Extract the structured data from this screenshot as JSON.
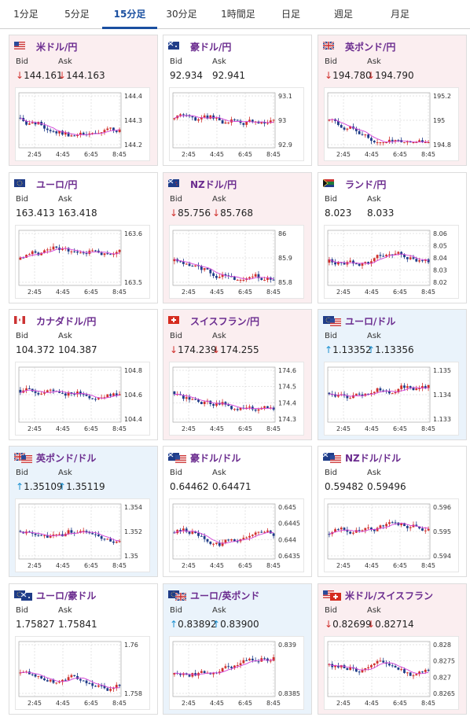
{
  "tabs": [
    {
      "label": "1分足",
      "active": false
    },
    {
      "label": "5分足",
      "active": false
    },
    {
      "label": "15分足",
      "active": true
    },
    {
      "label": "30分足",
      "active": false
    },
    {
      "label": "1時間足",
      "active": false
    },
    {
      "label": "日足",
      "active": false
    },
    {
      "label": "週足",
      "active": false
    },
    {
      "label": "月足",
      "active": false
    }
  ],
  "x_ticks": [
    "2:45",
    "4:45",
    "6:45",
    "8:45"
  ],
  "labels": {
    "bid": "Bid",
    "ask": "Ask"
  },
  "colors": {
    "down_bg": "#fbeef0",
    "up_bg": "#eaf3fb",
    "flat_bg": "#ffffff",
    "candle_up": "#d0312d",
    "candle_down": "#1f3c88",
    "ma_line": "#d23fd8",
    "arrow_down": "#d0312d",
    "arrow_up": "#1a8fd0",
    "pair_text": "#6b2c8f"
  },
  "pairs": [
    {
      "name": "米ドル/円",
      "flag": "us-flag",
      "bid": "144.161",
      "ask": "144.163",
      "trend": "down",
      "y_ticks": [
        "144.4",
        "144.3",
        "144.2"
      ]
    },
    {
      "name": "豪ドル/円",
      "flag": "au-flag",
      "bid": "92.934",
      "ask": "92.941",
      "trend": "flat",
      "y_ticks": [
        "93.1",
        "93",
        "92.9"
      ]
    },
    {
      "name": "英ポンド/円",
      "flag": "gb-flag",
      "bid": "194.780",
      "ask": "194.790",
      "trend": "down",
      "y_ticks": [
        "195.2",
        "195",
        "194.8"
      ]
    },
    {
      "name": "ユーロ/円",
      "flag": "eu-flag",
      "bid": "163.413",
      "ask": "163.418",
      "trend": "flat",
      "y_ticks": [
        "163.6",
        "163.5"
      ]
    },
    {
      "name": "NZドル/円",
      "flag": "nz-flag",
      "bid": "85.756",
      "ask": "85.768",
      "trend": "down",
      "y_ticks": [
        "86",
        "85.9",
        "85.8"
      ]
    },
    {
      "name": "ランド/円",
      "flag": "za-flag",
      "bid": "8.023",
      "ask": "8.033",
      "trend": "flat",
      "y_ticks": [
        "8.06",
        "8.05",
        "8.04",
        "8.03",
        "8.02"
      ]
    },
    {
      "name": "カナダドル/円",
      "flag": "ca-flag",
      "bid": "104.372",
      "ask": "104.387",
      "trend": "flat",
      "y_ticks": [
        "104.8",
        "104.6",
        "104.4"
      ]
    },
    {
      "name": "スイスフラン/円",
      "flag": "ch-flag",
      "bid": "174.239",
      "ask": "174.255",
      "trend": "down",
      "y_ticks": [
        "174.6",
        "174.5",
        "174.4",
        "174.3"
      ]
    },
    {
      "name": "ユーロ/ドル",
      "flag": "eu-us-flag",
      "bid": "1.13352",
      "ask": "1.13356",
      "trend": "up",
      "y_ticks": [
        "1.135",
        "1.134",
        "1.133"
      ]
    },
    {
      "name": "英ポンド/ドル",
      "flag": "gb-us-flag",
      "bid": "1.35109",
      "ask": "1.35119",
      "trend": "up",
      "y_ticks": [
        "1.354",
        "1.352",
        "1.35"
      ]
    },
    {
      "name": "豪ドル/ドル",
      "flag": "au-us-flag",
      "bid": "0.64462",
      "ask": "0.64471",
      "trend": "flat",
      "y_ticks": [
        "0.645",
        "0.6445",
        "0.644",
        "0.6435"
      ]
    },
    {
      "name": "NZドル/ドル",
      "flag": "nz-us-flag",
      "bid": "0.59482",
      "ask": "0.59496",
      "trend": "flat",
      "y_ticks": [
        "0.596",
        "0.595",
        "0.594"
      ]
    },
    {
      "name": "ユーロ/豪ドル",
      "flag": "eu-au-flag",
      "bid": "1.75827",
      "ask": "1.75841",
      "trend": "flat",
      "y_ticks": [
        "1.76",
        "1.758"
      ]
    },
    {
      "name": "ユーロ/英ポンド",
      "flag": "eu-gb-flag",
      "bid": "0.83892",
      "ask": "0.83900",
      "trend": "up",
      "y_ticks": [
        "0.839",
        "0.8385"
      ]
    },
    {
      "name": "米ドル/スイスフラン",
      "flag": "us-ch-flag",
      "bid": "0.82699",
      "ask": "0.82714",
      "trend": "down",
      "y_ticks": [
        "0.828",
        "0.8275",
        "0.827",
        "0.8265"
      ]
    }
  ]
}
